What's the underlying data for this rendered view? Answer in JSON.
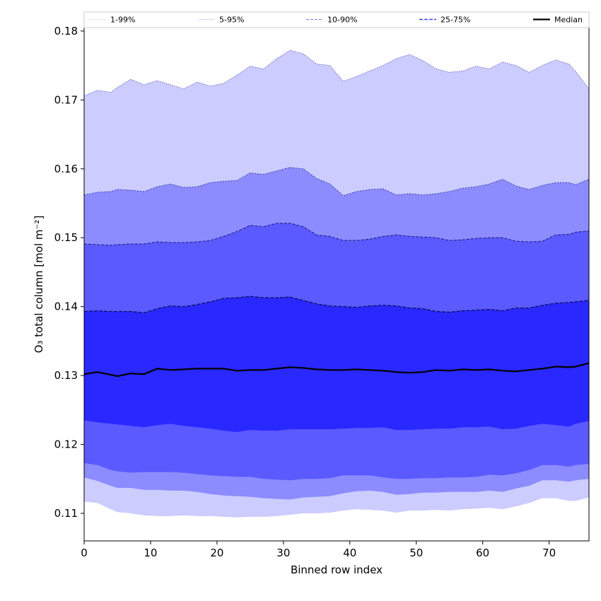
{
  "chart_data": {
    "type": "area",
    "title": "",
    "xlabel": "Binned row index",
    "ylabel": "O₃ total column [mol m⁻²]",
    "xlim": [
      0,
      76
    ],
    "ylim": [
      0.106,
      0.1805
    ],
    "xticks": [
      0,
      10,
      20,
      30,
      40,
      50,
      60,
      70
    ],
    "yticks": [
      0.11,
      0.12,
      0.13,
      0.14,
      0.15,
      0.16,
      0.17,
      0.18
    ],
    "grid": false,
    "legend": {
      "placement": "top",
      "entries": [
        {
          "label": "1-99%",
          "color": "#ccccff",
          "style": "thin-solid"
        },
        {
          "label": "5-95%",
          "color": "#8c8cff",
          "style": "dotted"
        },
        {
          "label": "10-90%",
          "color": "#7a7aff",
          "style": "dashed"
        },
        {
          "label": "25-75%",
          "color": "#4040ff",
          "style": "dashed"
        },
        {
          "label": "Median",
          "color": "#000000",
          "style": "solid"
        }
      ]
    },
    "x_anchor": [
      0,
      2,
      4,
      5,
      7,
      9,
      11,
      13,
      15,
      17,
      19,
      21,
      23,
      25,
      27,
      29,
      31,
      33,
      35,
      37,
      39,
      41,
      43,
      45,
      47,
      49,
      51,
      53,
      55,
      57,
      59,
      61,
      63,
      65,
      67,
      69,
      71,
      73,
      74,
      76
    ],
    "bands": [
      {
        "name": "1-99%",
        "fill": "#ccccff",
        "lower": [
          0.1117,
          0.1115,
          0.1106,
          0.1102,
          0.11,
          0.1097,
          0.1096,
          0.1096,
          0.1097,
          0.1096,
          0.1096,
          0.1095,
          0.1094,
          0.1095,
          0.1095,
          0.1096,
          0.1098,
          0.11,
          0.11,
          0.1101,
          0.1104,
          0.1106,
          0.1105,
          0.1104,
          0.1101,
          0.1104,
          0.1104,
          0.1105,
          0.1104,
          0.1106,
          0.1107,
          0.1108,
          0.1106,
          0.111,
          0.1115,
          0.1122,
          0.1122,
          0.1118,
          0.1118,
          0.1123
        ],
        "upper": [
          0.1706,
          0.1714,
          0.1711,
          0.1718,
          0.173,
          0.1722,
          0.1728,
          0.1722,
          0.1716,
          0.1726,
          0.172,
          0.1724,
          0.1736,
          0.1749,
          0.1745,
          0.176,
          0.1772,
          0.1767,
          0.1752,
          0.175,
          0.1727,
          0.1734,
          0.1742,
          0.175,
          0.176,
          0.1766,
          0.1757,
          0.1745,
          0.174,
          0.1742,
          0.1749,
          0.1745,
          0.1755,
          0.175,
          0.174,
          0.175,
          0.1758,
          0.1752,
          0.1741,
          0.1716
        ]
      },
      {
        "name": "5-95%",
        "fill": "#8c8cff",
        "lower": [
          0.1152,
          0.1147,
          0.114,
          0.1137,
          0.1137,
          0.1134,
          0.1134,
          0.1133,
          0.1133,
          0.1131,
          0.1128,
          0.1126,
          0.1125,
          0.1124,
          0.1122,
          0.1121,
          0.112,
          0.1123,
          0.1124,
          0.1125,
          0.1129,
          0.1132,
          0.1133,
          0.1131,
          0.1127,
          0.1128,
          0.113,
          0.113,
          0.1131,
          0.1131,
          0.1131,
          0.1133,
          0.1131,
          0.1136,
          0.114,
          0.1148,
          0.1148,
          0.1146,
          0.1148,
          0.115
        ],
        "upper": [
          0.1562,
          0.1566,
          0.1567,
          0.157,
          0.1569,
          0.1567,
          0.1574,
          0.1578,
          0.1573,
          0.1574,
          0.158,
          0.1582,
          0.1583,
          0.1594,
          0.1592,
          0.1597,
          0.1602,
          0.16,
          0.1586,
          0.1578,
          0.1561,
          0.1567,
          0.157,
          0.1571,
          0.1562,
          0.1564,
          0.1562,
          0.1564,
          0.1567,
          0.1572,
          0.1574,
          0.1578,
          0.1585,
          0.1575,
          0.157,
          0.1576,
          0.158,
          0.158,
          0.1577,
          0.1585
        ]
      },
      {
        "name": "10-90%",
        "fill": "#5a5aff",
        "lower": [
          0.1173,
          0.117,
          0.1163,
          0.1161,
          0.1159,
          0.116,
          0.116,
          0.116,
          0.1159,
          0.1157,
          0.1155,
          0.1154,
          0.1153,
          0.1153,
          0.115,
          0.1149,
          0.1148,
          0.115,
          0.115,
          0.1151,
          0.1155,
          0.1155,
          0.1155,
          0.1152,
          0.115,
          0.115,
          0.1151,
          0.1151,
          0.1152,
          0.1152,
          0.1153,
          0.1156,
          0.1155,
          0.1158,
          0.1163,
          0.117,
          0.117,
          0.1168,
          0.117,
          0.1172
        ],
        "upper": [
          0.1491,
          0.149,
          0.1489,
          0.149,
          0.1491,
          0.1491,
          0.1494,
          0.1493,
          0.1493,
          0.1494,
          0.1496,
          0.1502,
          0.1509,
          0.1518,
          0.1516,
          0.1521,
          0.1521,
          0.1516,
          0.1504,
          0.1502,
          0.1496,
          0.1496,
          0.1498,
          0.1502,
          0.1504,
          0.1502,
          0.1501,
          0.15,
          0.1496,
          0.1497,
          0.1499,
          0.15,
          0.15,
          0.1495,
          0.1494,
          0.1495,
          0.1504,
          0.1505,
          0.1508,
          0.151
        ]
      },
      {
        "name": "25-75%",
        "fill": "#2828ff",
        "lower": [
          0.1235,
          0.1232,
          0.123,
          0.1229,
          0.1227,
          0.1225,
          0.1228,
          0.123,
          0.1227,
          0.1225,
          0.1223,
          0.122,
          0.1218,
          0.1221,
          0.122,
          0.122,
          0.1222,
          0.1222,
          0.1222,
          0.1222,
          0.1223,
          0.1224,
          0.1224,
          0.1225,
          0.1221,
          0.1221,
          0.1222,
          0.1223,
          0.1223,
          0.1225,
          0.1225,
          0.1226,
          0.1222,
          0.1223,
          0.1227,
          0.123,
          0.1228,
          0.1226,
          0.123,
          0.1234
        ],
        "upper": [
          0.1393,
          0.1394,
          0.1393,
          0.1393,
          0.1393,
          0.1391,
          0.1397,
          0.1401,
          0.14,
          0.1403,
          0.1407,
          0.1412,
          0.1413,
          0.1415,
          0.1413,
          0.1413,
          0.1414,
          0.1409,
          0.1404,
          0.1401,
          0.14,
          0.1399,
          0.1401,
          0.1402,
          0.1401,
          0.1398,
          0.1397,
          0.1393,
          0.1392,
          0.1394,
          0.1395,
          0.1396,
          0.1394,
          0.1398,
          0.1398,
          0.1402,
          0.1405,
          0.1406,
          0.1407,
          0.1409
        ]
      }
    ],
    "median": [
      0.1302,
      0.1305,
      0.1301,
      0.1299,
      0.1303,
      0.1302,
      0.131,
      0.1308,
      0.1309,
      0.131,
      0.131,
      0.131,
      0.1307,
      0.1308,
      0.1308,
      0.131,
      0.1312,
      0.1311,
      0.1309,
      0.1308,
      0.1308,
      0.1309,
      0.1308,
      0.1307,
      0.1305,
      0.1304,
      0.1305,
      0.1308,
      0.1307,
      0.1309,
      0.1308,
      0.1309,
      0.1307,
      0.1306,
      0.1308,
      0.131,
      0.1313,
      0.1312,
      0.1313,
      0.1318
    ]
  }
}
